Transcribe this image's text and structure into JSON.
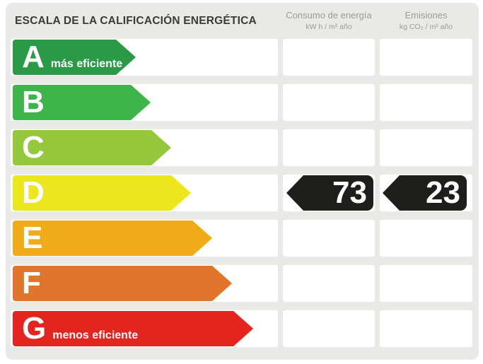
{
  "title": "ESCALA DE LA CALIFICACIÓN ENERGÉTICA",
  "columns": {
    "consumo": {
      "label": "Consumo de energía",
      "units": "kW h / m² año"
    },
    "emisiones": {
      "label": "Emisiones",
      "units": "kg CO₂ / m² año"
    }
  },
  "colors": {
    "panel_bg": "#e9e9e7",
    "cell_bg": "#ffffff",
    "title_text": "#3b3b3a",
    "header_text": "#9b9b9a",
    "value_arrow_bg": "#1e1e1c",
    "value_text": "#ffffff"
  },
  "ratings": [
    {
      "letter": "A",
      "note": "más eficiente",
      "color": "#2a9a47",
      "arrow_width": 174
    },
    {
      "letter": "B",
      "note": "",
      "color": "#3db54a",
      "arrow_width": 195
    },
    {
      "letter": "C",
      "note": "",
      "color": "#95c83d",
      "arrow_width": 224
    },
    {
      "letter": "D",
      "note": "",
      "color": "#ece71d",
      "arrow_width": 252
    },
    {
      "letter": "E",
      "note": "",
      "color": "#efac18",
      "arrow_width": 282
    },
    {
      "letter": "F",
      "note": "",
      "color": "#e0752b",
      "arrow_width": 310
    },
    {
      "letter": "G",
      "note": "menos eficiente",
      "color": "#e4251f",
      "arrow_width": 340
    }
  ],
  "result": {
    "rating_letter": "D",
    "consumo_value": "73",
    "emisiones_value": "23"
  },
  "chart_data": {
    "type": "table",
    "title": "ESCALA DE LA CALIFICACIÓN ENERGÉTICA",
    "categories": [
      "A",
      "B",
      "C",
      "D",
      "E",
      "F",
      "G"
    ],
    "category_notes": [
      "más eficiente",
      "",
      "",
      "",
      "",
      "",
      "menos eficiente"
    ],
    "series": [
      {
        "name": "Consumo de energía (kW h / m² año)",
        "values": [
          null,
          null,
          null,
          73,
          null,
          null,
          null
        ]
      },
      {
        "name": "Emisiones (kg CO₂ / m² año)",
        "values": [
          null,
          null,
          null,
          23,
          null,
          null,
          null
        ]
      }
    ],
    "selected_rating": "D"
  }
}
